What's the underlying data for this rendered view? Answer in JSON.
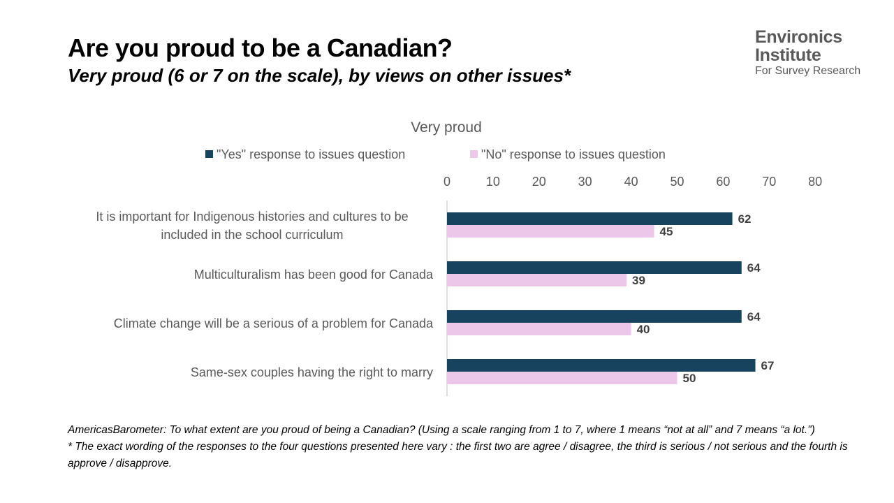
{
  "slide": {
    "title": "Are you proud to be a Canadian?",
    "subtitle": "Very proud (6 or 7 on the scale), by views on other issues*"
  },
  "logo": {
    "line1": "Environics",
    "line2": "Institute",
    "line3": "For Survey Research"
  },
  "footnotes": [
    "AmericasBarometer: To what extent are you proud of being a Canadian? (Using a scale ranging from 1 to 7, where 1 means “not at all” and 7 means “a lot.\")",
    "* The exact wording of the responses to the four questions presented here vary : the first two are agree / disagree, the third is serious / not serious and the fourth is approve / disapprove."
  ],
  "chart_data": {
    "type": "bar",
    "orientation": "horizontal",
    "title": "Very proud",
    "categories": [
      [
        "It is important for Indigenous histories and cultures to be",
        "included in the school curriculum"
      ],
      [
        "Multiculturalism has been good for Canada"
      ],
      [
        "Climate change will be a serious of a problem for Canada"
      ],
      [
        "Same-sex couples having the right to marry"
      ]
    ],
    "series": [
      {
        "name": "\"Yes\" response to issues question",
        "color": "#17435E",
        "values": [
          62,
          64,
          64,
          67
        ]
      },
      {
        "name": "\"No\" response to issues question",
        "color": "#EDC7EA",
        "values": [
          45,
          39,
          40,
          50
        ]
      }
    ],
    "xlim": [
      0,
      80
    ],
    "xticks": [
      0,
      10,
      20,
      30,
      40,
      50,
      60,
      70,
      80
    ],
    "axis_position": "top",
    "legend_position": "top",
    "grid": false,
    "data_labels": true
  }
}
